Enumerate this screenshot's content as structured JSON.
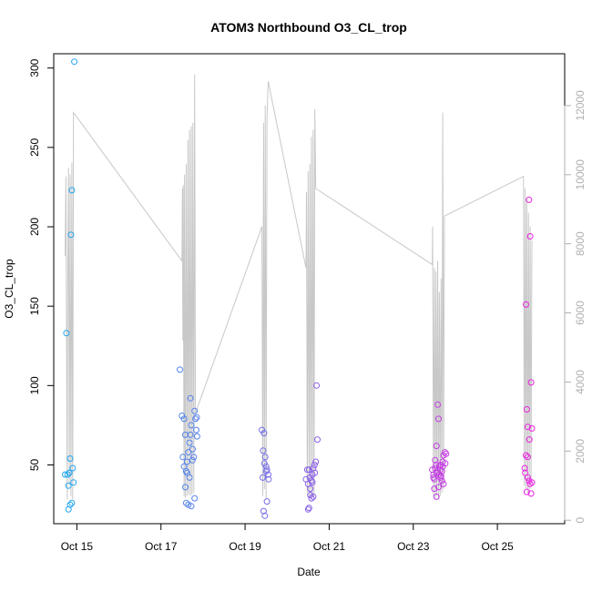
{
  "chart_data": {
    "type": "scatter",
    "title": "ATOM3 Northbound O3_CL_trop",
    "xlabel": "Date",
    "ylabel": "O3_CL_trop",
    "xlim": [
      14.45,
      26.6
    ],
    "ylim": [
      13,
      309
    ],
    "y2lim": [
      -100,
      13500
    ],
    "x_ticks": [
      15,
      17,
      19,
      21,
      23,
      25
    ],
    "x_tick_labels": [
      "Oct 15",
      "Oct 17",
      "Oct 19",
      "Oct 21",
      "Oct 23",
      "Oct 25"
    ],
    "y_ticks": [
      50,
      100,
      150,
      200,
      250,
      300
    ],
    "y2_ticks": [
      0,
      2000,
      4000,
      6000,
      8000,
      10000,
      12000
    ],
    "grid": false,
    "color_start": "#1aa8ee",
    "color_end": "#f020e0",
    "series": [
      {
        "points": [
          [
            14.75,
            133
          ],
          [
            14.78,
            44
          ],
          [
            14.8,
            37
          ],
          [
            14.82,
            45
          ],
          [
            14.84,
            54
          ],
          [
            14.86,
            195
          ],
          [
            14.88,
            223
          ],
          [
            14.9,
            48
          ],
          [
            14.92,
            39
          ],
          [
            14.8,
            22
          ],
          [
            14.88,
            26
          ],
          [
            14.94,
            304
          ],
          [
            14.72,
            44
          ],
          [
            14.84,
            25
          ],
          [
            17.45,
            110
          ],
          [
            17.5,
            81
          ],
          [
            17.55,
            79
          ],
          [
            17.58,
            69
          ],
          [
            17.52,
            55
          ],
          [
            17.55,
            49
          ],
          [
            17.6,
            46
          ],
          [
            17.62,
            52
          ],
          [
            17.65,
            58
          ],
          [
            17.68,
            64
          ],
          [
            17.7,
            92
          ],
          [
            17.72,
            75
          ],
          [
            17.75,
            60
          ],
          [
            17.78,
            55
          ],
          [
            17.8,
            84
          ],
          [
            17.82,
            79
          ],
          [
            17.84,
            72
          ],
          [
            17.86,
            68
          ],
          [
            17.85,
            80
          ],
          [
            17.6,
            26
          ],
          [
            17.65,
            25
          ],
          [
            17.72,
            24
          ],
          [
            17.8,
            29
          ],
          [
            17.68,
            42
          ],
          [
            17.75,
            53
          ],
          [
            17.58,
            36
          ],
          [
            17.62,
            45
          ],
          [
            17.7,
            69
          ],
          [
            19.4,
            72
          ],
          [
            19.43,
            59
          ],
          [
            19.46,
            51
          ],
          [
            19.5,
            49
          ],
          [
            19.52,
            47
          ],
          [
            19.55,
            44
          ],
          [
            19.45,
            70
          ],
          [
            19.48,
            55
          ],
          [
            19.42,
            42
          ],
          [
            19.5,
            46
          ],
          [
            19.44,
            21
          ],
          [
            19.47,
            18
          ],
          [
            19.52,
            27
          ],
          [
            19.56,
            41
          ],
          [
            20.45,
            41
          ],
          [
            20.5,
            38
          ],
          [
            20.52,
            47
          ],
          [
            20.55,
            35
          ],
          [
            20.58,
            40
          ],
          [
            20.6,
            44
          ],
          [
            20.62,
            48
          ],
          [
            20.65,
            50
          ],
          [
            20.68,
            52
          ],
          [
            20.7,
            100
          ],
          [
            20.72,
            66
          ],
          [
            20.5,
            22
          ],
          [
            20.55,
            31
          ],
          [
            20.58,
            29
          ],
          [
            20.62,
            30
          ],
          [
            20.52,
            23
          ],
          [
            20.6,
            39
          ],
          [
            20.66,
            45
          ],
          [
            20.48,
            47
          ],
          [
            20.54,
            42
          ],
          [
            23.45,
            47
          ],
          [
            23.48,
            44
          ],
          [
            23.5,
            41
          ],
          [
            23.52,
            53
          ],
          [
            23.55,
            62
          ],
          [
            23.58,
            88
          ],
          [
            23.6,
            79
          ],
          [
            23.62,
            49
          ],
          [
            23.65,
            50
          ],
          [
            23.68,
            46
          ],
          [
            23.7,
            52
          ],
          [
            23.72,
            56
          ],
          [
            23.75,
            58
          ],
          [
            23.78,
            57
          ],
          [
            23.5,
            35
          ],
          [
            23.55,
            30
          ],
          [
            23.6,
            36
          ],
          [
            23.65,
            42
          ],
          [
            23.52,
            48
          ],
          [
            23.58,
            46
          ],
          [
            23.62,
            44
          ],
          [
            23.68,
            40
          ],
          [
            23.72,
            38
          ],
          [
            23.48,
            42
          ],
          [
            23.56,
            45
          ],
          [
            23.64,
            47
          ],
          [
            23.7,
            49
          ],
          [
            23.76,
            51
          ],
          [
            23.54,
            50
          ],
          [
            23.66,
            43
          ],
          [
            25.65,
            48
          ],
          [
            25.68,
            151
          ],
          [
            25.7,
            85
          ],
          [
            25.72,
            55
          ],
          [
            25.75,
            217
          ],
          [
            25.78,
            194
          ],
          [
            25.8,
            102
          ],
          [
            25.82,
            73
          ],
          [
            25.68,
            56
          ],
          [
            25.72,
            42
          ],
          [
            25.75,
            40
          ],
          [
            25.78,
            38
          ],
          [
            25.7,
            33
          ],
          [
            25.8,
            32
          ],
          [
            25.72,
            74
          ],
          [
            25.76,
            66
          ],
          [
            25.66,
            45
          ],
          [
            25.82,
            39
          ]
        ]
      },
      {
        "axis": "right",
        "points": [
          [
            14.72,
            7650
          ],
          [
            14.74,
            9950
          ],
          [
            14.75,
            6400
          ],
          [
            14.77,
            600
          ],
          [
            14.78,
            6300
          ],
          [
            14.8,
            10200
          ],
          [
            14.82,
            1000
          ],
          [
            14.84,
            10000
          ],
          [
            14.86,
            700
          ],
          [
            14.88,
            10350
          ],
          [
            14.9,
            600
          ],
          [
            14.92,
            11800
          ],
          [
            17.5,
            7500
          ],
          [
            17.51,
            9600
          ],
          [
            17.52,
            5200
          ],
          [
            17.53,
            9700
          ],
          [
            17.55,
            700
          ],
          [
            17.56,
            10000
          ],
          [
            17.58,
            650
          ],
          [
            17.6,
            10300
          ],
          [
            17.62,
            700
          ],
          [
            17.64,
            11000
          ],
          [
            17.66,
            750
          ],
          [
            17.68,
            11300
          ],
          [
            17.7,
            700
          ],
          [
            17.72,
            11400
          ],
          [
            17.74,
            750
          ],
          [
            17.76,
            11500
          ],
          [
            17.78,
            800
          ],
          [
            17.8,
            12900
          ],
          [
            17.82,
            3100
          ],
          [
            19.4,
            8500
          ],
          [
            19.42,
            700
          ],
          [
            19.44,
            11500
          ],
          [
            19.46,
            900
          ],
          [
            19.48,
            12000
          ],
          [
            19.5,
            600
          ],
          [
            19.52,
            11600
          ],
          [
            19.55,
            12700
          ],
          [
            20.45,
            7300
          ],
          [
            20.46,
            9500
          ],
          [
            20.48,
            800
          ],
          [
            20.5,
            10100
          ],
          [
            20.52,
            700
          ],
          [
            20.54,
            10300
          ],
          [
            20.56,
            650
          ],
          [
            20.58,
            11100
          ],
          [
            20.6,
            700
          ],
          [
            20.62,
            11300
          ],
          [
            20.64,
            700
          ],
          [
            20.66,
            11900
          ],
          [
            20.68,
            9600
          ],
          [
            23.45,
            7400
          ],
          [
            23.46,
            8500
          ],
          [
            23.48,
            700
          ],
          [
            23.5,
            7300
          ],
          [
            23.52,
            600
          ],
          [
            23.54,
            7200
          ],
          [
            23.56,
            700
          ],
          [
            23.58,
            7500
          ],
          [
            23.6,
            650
          ],
          [
            23.62,
            6600
          ],
          [
            23.64,
            700
          ],
          [
            23.66,
            7000
          ],
          [
            23.68,
            800
          ],
          [
            23.7,
            11800
          ],
          [
            23.72,
            900
          ],
          [
            23.74,
            8800
          ],
          [
            25.62,
            9950
          ],
          [
            25.64,
            1000
          ],
          [
            25.66,
            9600
          ],
          [
            25.68,
            900
          ],
          [
            25.7,
            9300
          ],
          [
            25.72,
            800
          ],
          [
            25.74,
            8900
          ],
          [
            25.76,
            900
          ],
          [
            25.78,
            8500
          ],
          [
            25.8,
            1000
          ],
          [
            25.82,
            8100
          ]
        ]
      }
    ]
  }
}
